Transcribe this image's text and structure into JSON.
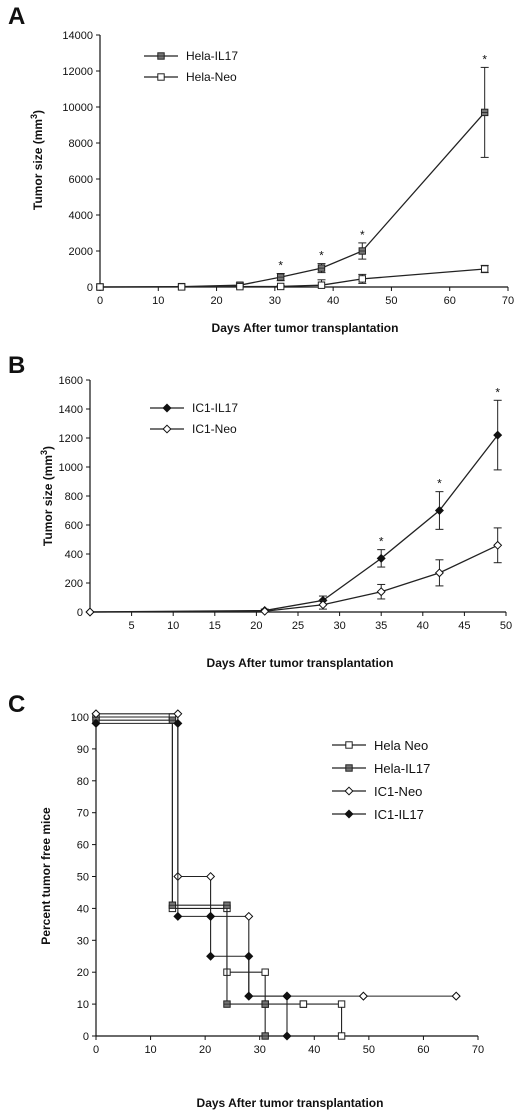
{
  "chart_data": [
    {
      "panel": "A",
      "type": "line",
      "ylabel": "Tumor size (mm3)",
      "xlabel": "Days After tumor transplantation",
      "xlim": [
        0,
        70
      ],
      "ylim": [
        0,
        14000
      ],
      "xticks": [
        0,
        10,
        20,
        30,
        40,
        50,
        60,
        70
      ],
      "yticks": [
        0,
        2000,
        4000,
        6000,
        8000,
        10000,
        12000,
        14000
      ],
      "legend_position": "top-left",
      "series": [
        {
          "name": "Hela-IL17",
          "marker": "square-filled",
          "x": [
            0,
            14,
            24,
            31,
            38,
            45,
            66
          ],
          "y": [
            0,
            20,
            100,
            550,
            1050,
            2000,
            9700
          ],
          "err": [
            0,
            30,
            120,
            200,
            250,
            450,
            2500
          ]
        },
        {
          "name": "Hela-Neo",
          "marker": "square-open",
          "x": [
            0,
            14,
            24,
            31,
            38,
            45,
            66
          ],
          "y": [
            0,
            5,
            20,
            30,
            100,
            450,
            1000
          ],
          "err": [
            0,
            10,
            30,
            50,
            300,
            250,
            200
          ]
        }
      ],
      "significance_marks": {
        "symbol": "*",
        "x": [
          31,
          38,
          45,
          66
        ]
      }
    },
    {
      "panel": "B",
      "type": "line",
      "ylabel": "Tumor size (mm3)",
      "xlabel": "Days After tumor transplantation",
      "xlim": [
        0,
        50
      ],
      "ylim": [
        0,
        1600
      ],
      "xticks": [
        5,
        10,
        15,
        20,
        25,
        30,
        35,
        40,
        45,
        50
      ],
      "yticks": [
        0,
        200,
        400,
        600,
        800,
        1000,
        1200,
        1400,
        1600
      ],
      "legend_position": "top-left",
      "series": [
        {
          "name": "IC1-IL17",
          "marker": "diamond-filled",
          "x": [
            0,
            21,
            28,
            35,
            42,
            49
          ],
          "y": [
            0,
            10,
            80,
            370,
            700,
            1220
          ],
          "err": [
            0,
            10,
            30,
            60,
            130,
            240
          ]
        },
        {
          "name": "IC1-Neo",
          "marker": "diamond-open",
          "x": [
            0,
            21,
            28,
            35,
            42,
            49
          ],
          "y": [
            0,
            5,
            50,
            140,
            270,
            460
          ],
          "err": [
            0,
            5,
            30,
            50,
            90,
            120
          ]
        }
      ],
      "significance_marks": {
        "symbol": "*",
        "x": [
          35,
          42,
          49
        ]
      }
    },
    {
      "panel": "C",
      "type": "line",
      "subtype": "step",
      "ylabel": "Percent tumor free mice",
      "xlabel": "Days After tumor transplantation",
      "xlim": [
        0,
        70
      ],
      "ylim": [
        0,
        100
      ],
      "xticks": [
        0,
        10,
        20,
        30,
        40,
        50,
        60,
        70
      ],
      "yticks": [
        0,
        10,
        20,
        30,
        40,
        50,
        60,
        70,
        80,
        90,
        100
      ],
      "legend_position": "right",
      "series": [
        {
          "name": "Hela Neo",
          "marker": "square-open",
          "x": [
            0,
            14,
            24,
            31,
            38,
            45
          ],
          "y": [
            100,
            40,
            20,
            10,
            10,
            0
          ]
        },
        {
          "name": "Hela-IL17",
          "marker": "square-filled",
          "x": [
            0,
            14,
            24,
            31
          ],
          "y": [
            99,
            41,
            10,
            0
          ]
        },
        {
          "name": "IC1-Neo",
          "marker": "diamond-open",
          "x": [
            0,
            15,
            21,
            28,
            35,
            49,
            66
          ],
          "y": [
            101,
            50,
            37.5,
            12.5,
            12.5,
            12.5,
            12.5
          ]
        },
        {
          "name": "IC1-IL17",
          "marker": "diamond-filled",
          "x": [
            0,
            15,
            21,
            28,
            35
          ],
          "y": [
            98,
            37.5,
            25,
            12.5,
            0
          ]
        }
      ]
    }
  ],
  "labels": {
    "panel_a": "A",
    "panel_b": "B",
    "panel_c": "C",
    "ylabel_ab_prefix": "Tumor size (mm",
    "ylabel_ab_sup": "3",
    "ylabel_ab_suffix": ")"
  }
}
